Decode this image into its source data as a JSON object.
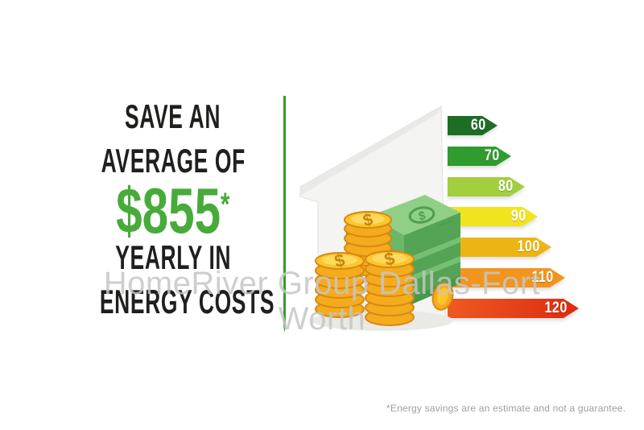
{
  "page": {
    "background": "#ffffff"
  },
  "headline": {
    "line1": "SAVE AN",
    "line2": "AVERAGE OF",
    "amount": "$855",
    "asterisk": "*",
    "line3": "YEARLY IN",
    "line4": "ENERGY COSTS",
    "text_color": "#1f1f1d",
    "amount_color": "#47ab3a"
  },
  "divider": {
    "color": "#2e9e2e"
  },
  "watermark": {
    "line1": "HomeRiver Group Dallas-Fort",
    "line2": "Worth",
    "color": "#c5c5c5"
  },
  "chart_data": {
    "type": "bar",
    "subtype": "energy-efficiency-rating-arrow-scale",
    "orientation": "horizontal",
    "categories": [
      "60",
      "70",
      "80",
      "90",
      "100",
      "110",
      "120"
    ],
    "values": [
      60,
      70,
      80,
      90,
      100,
      110,
      120
    ],
    "colors": [
      "#1d6d24",
      "#2f9c2d",
      "#a2cf3d",
      "#f1e41f",
      "#edb513",
      "#f1951f",
      "#e23c15"
    ],
    "label_color": "#ffffff",
    "title": "",
    "legend": "none",
    "note": "arrow length increases with rating value; green (60) = efficient, red (120) = costly"
  },
  "illustration": {
    "name": "house-with-gold-coins-and-cash",
    "house_color": "#f4f4f2",
    "coin_color": "#f5ab1e",
    "coin_top_color": "#fbc62e",
    "cash_top_color": "#8fd086",
    "cash_front_color": "#55a455"
  },
  "disclaimer": {
    "text": "*Energy savings are an estimate and not a guarantee.",
    "color": "#9e9e9e"
  }
}
